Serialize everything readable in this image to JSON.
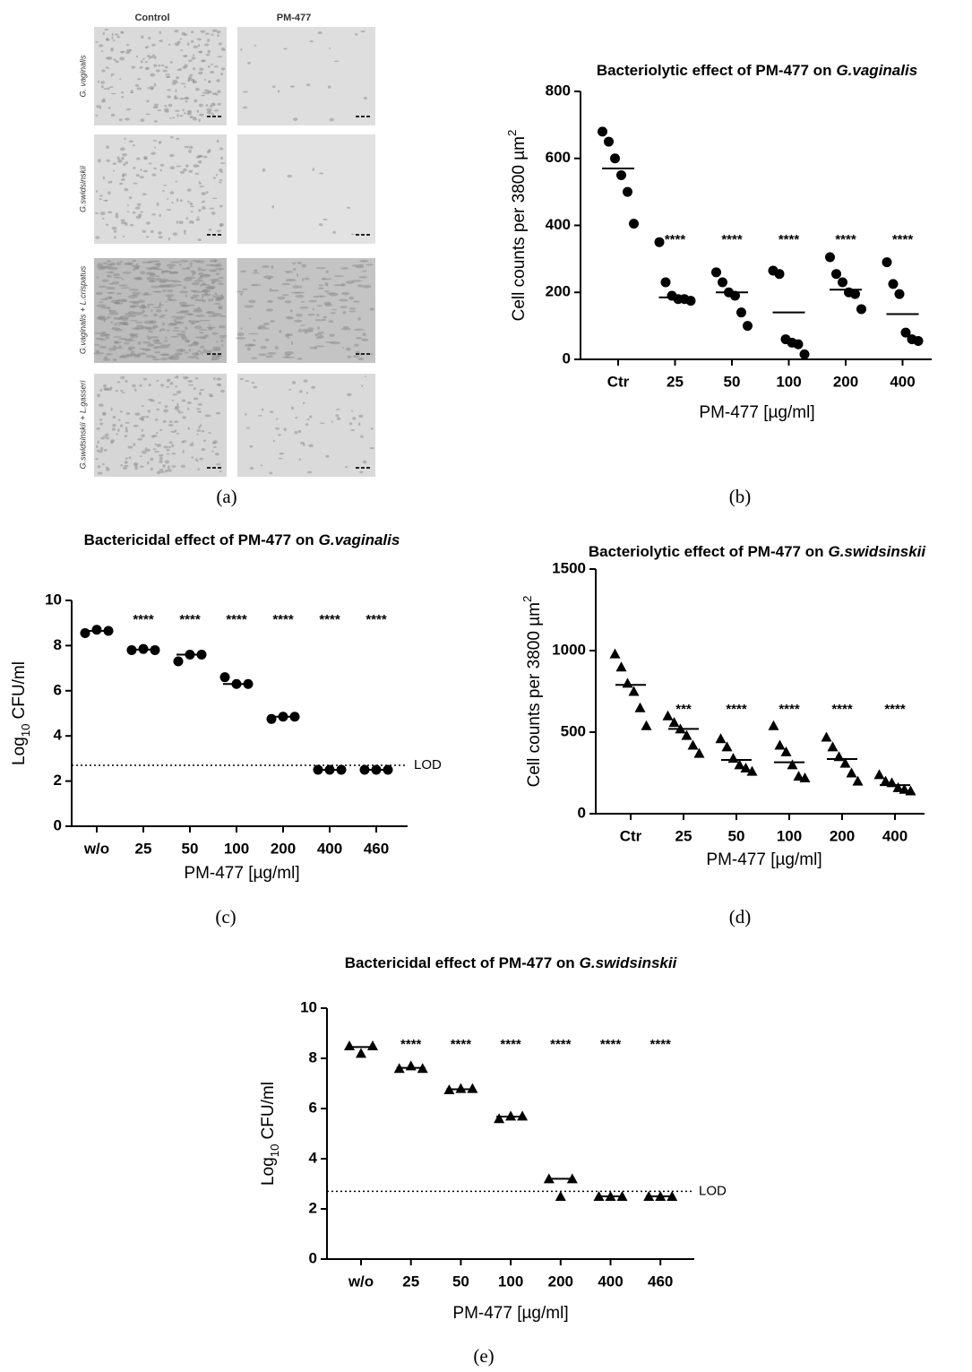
{
  "panel_a": {
    "columns": [
      "Control",
      "PM-477"
    ],
    "rows": [
      "G. vaginalis",
      "G.swidsinskii",
      "G.vaginalis + L.crispatus",
      "G.swidsinskii + L.gasseri"
    ],
    "caption": "(a)"
  },
  "chart_data": [
    {
      "type": "dotplot",
      "caption": "(b)",
      "marker": "circle",
      "color": "#000000",
      "title": [
        {
          "text": "Bacteriolytic effect of PM-477 on"
        },
        {
          "text": "G.vaginalis",
          "style": "italic"
        }
      ],
      "ylabel": [
        {
          "text": "Cell counts per 3800 µm"
        },
        {
          "text": "2",
          "shift": "super"
        }
      ],
      "xlabel": [
        {
          "text": "PM-477 [µg/ml]"
        }
      ],
      "categories": [
        "Ctr",
        "25",
        "50",
        "100",
        "200",
        "400"
      ],
      "points": [
        [
          680,
          650,
          600,
          550,
          500,
          405
        ],
        [
          350,
          230,
          190,
          180,
          180,
          175
        ],
        [
          260,
          230,
          200,
          190,
          140,
          100
        ],
        [
          265,
          255,
          60,
          50,
          45,
          15
        ],
        [
          305,
          255,
          230,
          200,
          195,
          150
        ],
        [
          290,
          225,
          195,
          80,
          60,
          55
        ]
      ],
      "means": [
        570,
        185,
        200,
        140,
        208,
        135
      ],
      "annotations": [
        null,
        "****",
        "****",
        "****",
        "****",
        "****"
      ],
      "ylim": [
        0,
        800
      ],
      "yticks": [
        0,
        200,
        400,
        600,
        800
      ]
    },
    {
      "type": "dotplot",
      "caption": "(c)",
      "marker": "circle",
      "color": "#000000",
      "title": [
        {
          "text": "Bactericidal effect of PM-477 on"
        },
        {
          "text": "G.vaginalis",
          "style": "italic"
        }
      ],
      "ylabel": [
        {
          "text": "Log"
        },
        {
          "text": "10",
          "shift": "sub"
        },
        {
          "text": "CFU/ml"
        }
      ],
      "xlabel": [
        {
          "text": "PM-477 [µg/ml]"
        }
      ],
      "categories": [
        "w/o",
        "25",
        "50",
        "100",
        "200",
        "400",
        "460"
      ],
      "points": [
        [
          8.55,
          8.7,
          8.65
        ],
        [
          7.8,
          7.85,
          7.8
        ],
        [
          7.3,
          7.6,
          7.6
        ],
        [
          6.6,
          6.3,
          6.3
        ],
        [
          4.75,
          4.85,
          4.85
        ],
        [
          2.5,
          2.5,
          2.5
        ],
        [
          2.5,
          2.5,
          2.5
        ]
      ],
      "means": [
        8.65,
        7.82,
        7.6,
        6.3,
        4.85,
        2.5,
        2.5
      ],
      "annotations": [
        null,
        "****",
        "****",
        "****",
        "****",
        "****",
        "****"
      ],
      "lod": 2.7,
      "lod_label": "LOD",
      "ylim": [
        0,
        10
      ],
      "yticks": [
        0,
        2,
        4,
        6,
        8,
        10
      ]
    },
    {
      "type": "dotplot",
      "caption": "(d)",
      "marker": "triangle",
      "color": "#000000",
      "title": [
        {
          "text": "Bacteriolytic effect of PM-477 on"
        },
        {
          "text": "G.swidsinskii",
          "style": "italic"
        }
      ],
      "ylabel": [
        {
          "text": "Cell counts per 3800 µm"
        },
        {
          "text": "2",
          "shift": "super"
        }
      ],
      "xlabel": [
        {
          "text": "PM-477 [µg/ml]"
        }
      ],
      "categories": [
        "Ctr",
        "25",
        "50",
        "100",
        "200",
        "400"
      ],
      "points": [
        [
          980,
          900,
          800,
          750,
          650,
          540
        ],
        [
          600,
          560,
          520,
          480,
          420,
          370
        ],
        [
          460,
          410,
          340,
          300,
          280,
          260
        ],
        [
          540,
          420,
          380,
          300,
          230,
          220
        ],
        [
          470,
          410,
          350,
          310,
          250,
          200
        ],
        [
          240,
          200,
          190,
          160,
          150,
          140
        ]
      ],
      "means": [
        790,
        520,
        330,
        315,
        335,
        175
      ],
      "annotations": [
        null,
        "***",
        "****",
        "****",
        "****",
        "****"
      ],
      "ylim": [
        0,
        1500
      ],
      "yticks": [
        0,
        500,
        1000,
        1500
      ]
    },
    {
      "type": "dotplot",
      "caption": "(e)",
      "marker": "triangle",
      "color": "#000000",
      "title": [
        {
          "text": "Bactericidal effect of PM-477 on"
        },
        {
          "text": "G.swidsinskii",
          "style": "italic"
        }
      ],
      "ylabel": [
        {
          "text": "Log"
        },
        {
          "text": "10",
          "shift": "sub"
        },
        {
          "text": "CFU/ml"
        }
      ],
      "xlabel": [
        {
          "text": "PM-477 [µg/ml]"
        }
      ],
      "categories": [
        "w/o",
        "25",
        "50",
        "100",
        "200",
        "400",
        "460"
      ],
      "points": [
        [
          8.5,
          8.2,
          8.5
        ],
        [
          7.6,
          7.7,
          7.6
        ],
        [
          6.75,
          6.8,
          6.8
        ],
        [
          5.6,
          5.7,
          5.7
        ],
        [
          3.2,
          2.5,
          3.2
        ],
        [
          2.5,
          2.5,
          2.5
        ],
        [
          2.5,
          2.5,
          2.5
        ]
      ],
      "means": [
        8.45,
        7.62,
        6.77,
        5.68,
        3.2,
        2.5,
        2.5
      ],
      "annotations": [
        null,
        "****",
        "****",
        "****",
        "****",
        "****",
        "****"
      ],
      "lod": 2.7,
      "lod_label": "LOD",
      "ylim": [
        0,
        10
      ],
      "yticks": [
        0,
        2,
        4,
        6,
        8,
        10
      ]
    }
  ]
}
